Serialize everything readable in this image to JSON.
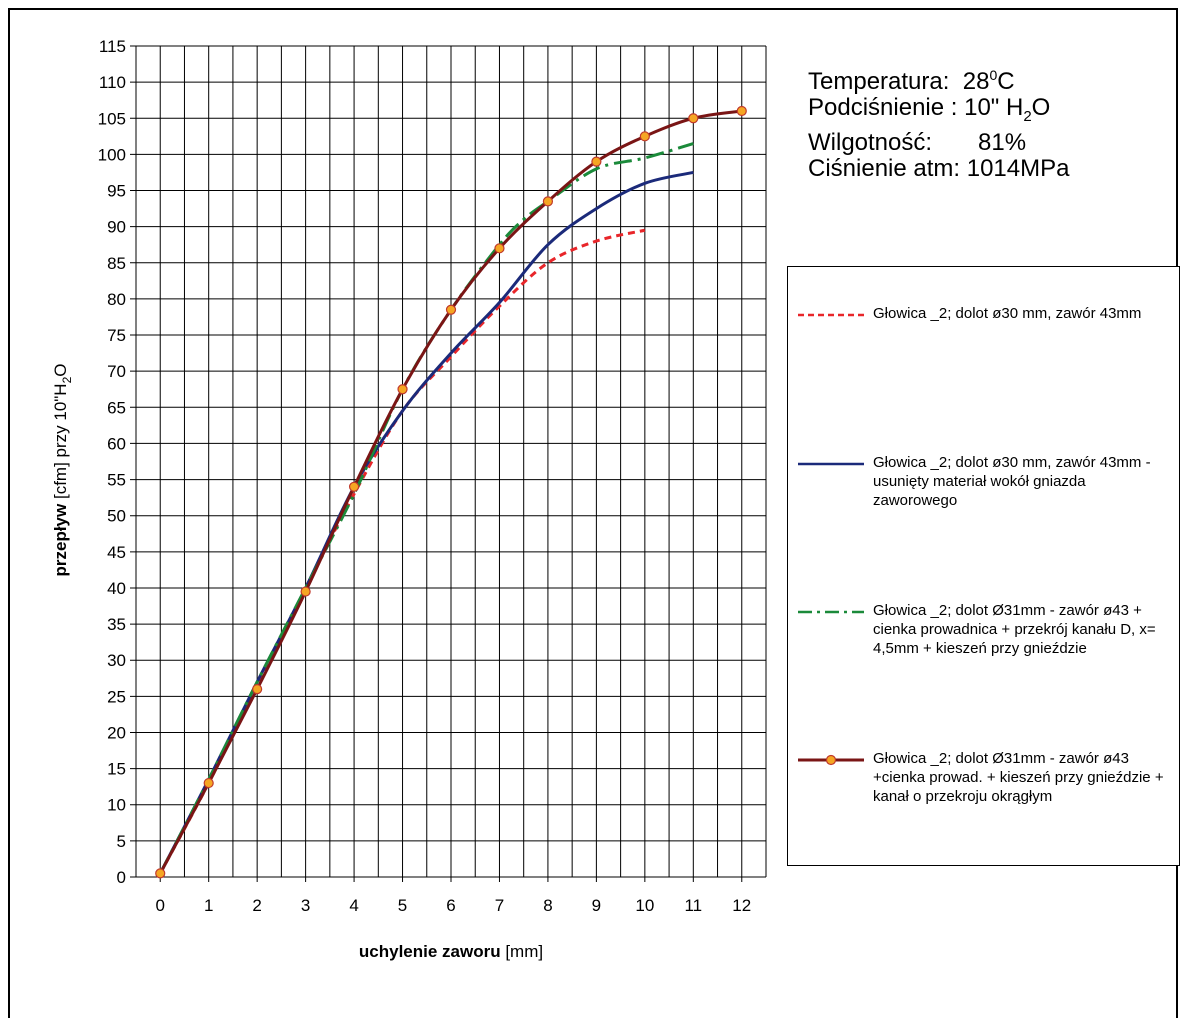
{
  "info": {
    "temp_label": "Temperatura:",
    "temp_value": "28",
    "temp_sup": "0",
    "temp_unit": "C",
    "vac_label": "Podciśnienie : 10\" H",
    "vac_sub": "2",
    "vac_tail": "O",
    "hum_label": "Wilgotność:",
    "hum_value": "81%",
    "atm_label": "Ciśnienie atm: 1014MPa"
  },
  "axes": {
    "xlabel_bold": "uchylenie zaworu",
    "xlabel_unit": " [mm]",
    "ylabel_bold": "przepływ",
    "ylabel_rest": " [cfm] przy 10\"H",
    "ylabel_sub": "2",
    "ylabel_tail": "O"
  },
  "chart_data": {
    "type": "line",
    "xlim": [
      -0.5,
      12.5
    ],
    "ylim": [
      0,
      115
    ],
    "x_ticks": [
      0,
      1,
      2,
      3,
      4,
      5,
      6,
      7,
      8,
      9,
      10,
      11,
      12
    ],
    "y_ticks": [
      0,
      5,
      10,
      15,
      20,
      25,
      30,
      35,
      40,
      45,
      50,
      55,
      60,
      65,
      70,
      75,
      80,
      85,
      90,
      95,
      100,
      105,
      110,
      115
    ],
    "grid": true,
    "legend_position": "right",
    "series": [
      {
        "name": "Głowica _2;  dolot ø30 mm,  zawór 43mm",
        "color": "#e8262a",
        "style": "dashed",
        "x": [
          0,
          1,
          2,
          3,
          4,
          5,
          6,
          7,
          8,
          9,
          10
        ],
        "y": [
          0.5,
          13,
          26.5,
          40,
          53,
          64.5,
          72,
          79,
          85,
          88,
          89.5
        ]
      },
      {
        "name": "Głowica _2;  dolot  ø30 mm, zawór 43mm - usunięty materiał wokół gniazda zaworowego",
        "color": "#1b2a7a",
        "style": "solid",
        "x": [
          0,
          1,
          2,
          3,
          4,
          5,
          6,
          7,
          8,
          9,
          10,
          11
        ],
        "y": [
          0.5,
          13.5,
          27,
          40,
          54,
          64.5,
          72.5,
          79.5,
          87.5,
          92.5,
          96,
          97.5
        ]
      },
      {
        "name": "Głowica _2; dolot Ø31mm - zawór ø43 + cienka prowadnica + przekrój kanału  D, x= 4,5mm + kieszeń przy gnieździe",
        "color": "#1b8a3a",
        "style": "dashdot",
        "x": [
          0,
          1,
          2,
          3,
          4,
          5,
          6,
          7,
          7.5,
          8,
          9,
          10,
          11
        ],
        "y": [
          0.5,
          13.5,
          27,
          40,
          53,
          67.5,
          78.5,
          87.5,
          91,
          93.5,
          98,
          99.5,
          101.5
        ]
      },
      {
        "name": "Głowica _2; dolot Ø31mm - zawór ø43 +cienka prowad. + kieszeń przy gnieździe + kanał o przekroju okrągłym",
        "color": "#7a1515",
        "style": "solid-marker",
        "marker_fill": "#f5a623",
        "marker_edge": "#c0392b",
        "x": [
          0,
          1,
          2,
          3,
          4,
          5,
          6,
          7,
          8,
          9,
          10,
          11,
          12
        ],
        "y": [
          0.5,
          13,
          26,
          39.5,
          54,
          67.5,
          78.5,
          87,
          93.5,
          99,
          102.5,
          105,
          106
        ]
      }
    ]
  }
}
